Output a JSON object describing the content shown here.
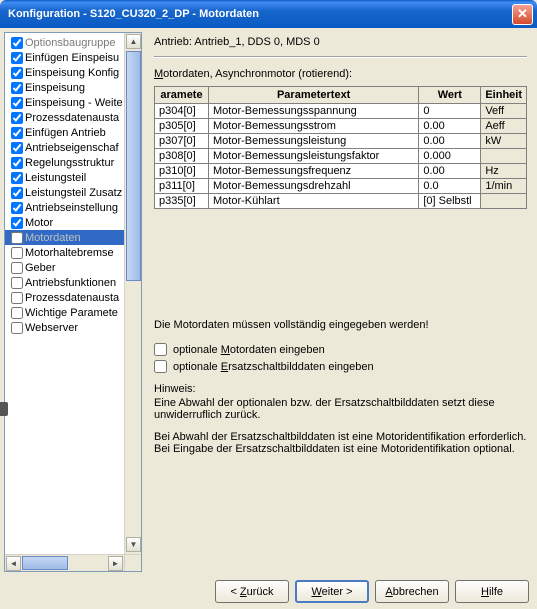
{
  "title": "Konfiguration - S120_CU320_2_DP - Motordaten",
  "tree": [
    {
      "label": "Optionsbaugruppe",
      "checked": true,
      "gray": true
    },
    {
      "label": "Einfügen Einspeisu",
      "checked": true
    },
    {
      "label": "Einspeisung Konfig",
      "checked": true
    },
    {
      "label": "Einspeisung",
      "checked": true
    },
    {
      "label": "Einspeisung - Weite",
      "checked": true
    },
    {
      "label": "Prozessdatenausta",
      "checked": true
    },
    {
      "label": "Einfügen Antrieb",
      "checked": true
    },
    {
      "label": "Antriebseigenschaf",
      "checked": true
    },
    {
      "label": "Regelungsstruktur",
      "checked": true
    },
    {
      "label": "Leistungsteil",
      "checked": true
    },
    {
      "label": "Leistungsteil Zusatz",
      "checked": true
    },
    {
      "label": "Antriebseinstellung",
      "checked": true
    },
    {
      "label": "Motor",
      "checked": true
    },
    {
      "label": "Motordaten",
      "checked": false,
      "sel": true
    },
    {
      "label": "Motorhaltebremse",
      "checked": false
    },
    {
      "label": "Geber",
      "checked": false
    },
    {
      "label": "Antriebsfunktionen",
      "checked": false
    },
    {
      "label": "Prozessdatenausta",
      "checked": false
    },
    {
      "label": "Wichtige Paramete",
      "checked": false
    },
    {
      "label": "Webserver",
      "checked": false
    }
  ],
  "drive_line": "Antrieb: Antrieb_1, DDS 0, MDS 0",
  "table_header_pre": "M",
  "table_header_text": "otordaten, Asynchronmotor (rotierend):",
  "columns": [
    "aramete",
    "Parametertext",
    "Wert",
    "Einheit"
  ],
  "rows": [
    [
      "p304[0]",
      "Motor-Bemessungsspannung",
      "0",
      "Veff"
    ],
    [
      "p305[0]",
      "Motor-Bemessungsstrom",
      "0.00",
      "Aeff"
    ],
    [
      "p307[0]",
      "Motor-Bemessungsleistung",
      "0.00",
      "kW"
    ],
    [
      "p308[0]",
      "Motor-Bemessungsleistungsfaktor",
      "0.000",
      ""
    ],
    [
      "p310[0]",
      "Motor-Bemessungsfrequenz",
      "0.00",
      "Hz"
    ],
    [
      "p311[0]",
      "Motor-Bemessungsdrehzahl",
      "0.0",
      "1/min"
    ],
    [
      "p335[0]",
      "Motor-Kühlart",
      "[0] Selbstl",
      ""
    ]
  ],
  "warning": "Die Motordaten müssen vollständig eingegeben werden!",
  "opt1_u": "M",
  "opt1": "optionale ",
  "opt1_rest": "otordaten eingeben",
  "opt2_u": "E",
  "opt2": "optionale ",
  "opt2_rest": "rsatzschaltbilddaten eingeben",
  "hint_label": "Hinweis:",
  "hint1": "Eine Abwahl der optionalen bzw. der Ersatzschaltbilddaten setzt diese unwiderruflich zurück.",
  "hint2": "Bei Abwahl der Ersatzschaltbilddaten ist eine Motoridentifikation erforderlich. Bei Eingabe der Ersatzschaltbilddaten ist eine Motoridentifikation optional.",
  "buttons": {
    "back": "< Zurück",
    "next": "Weiter >",
    "cancel": "Abbrechen",
    "help": "Hilfe"
  },
  "button_underline": {
    "back": "Z",
    "next": "W",
    "cancel": "A",
    "help": "H"
  }
}
